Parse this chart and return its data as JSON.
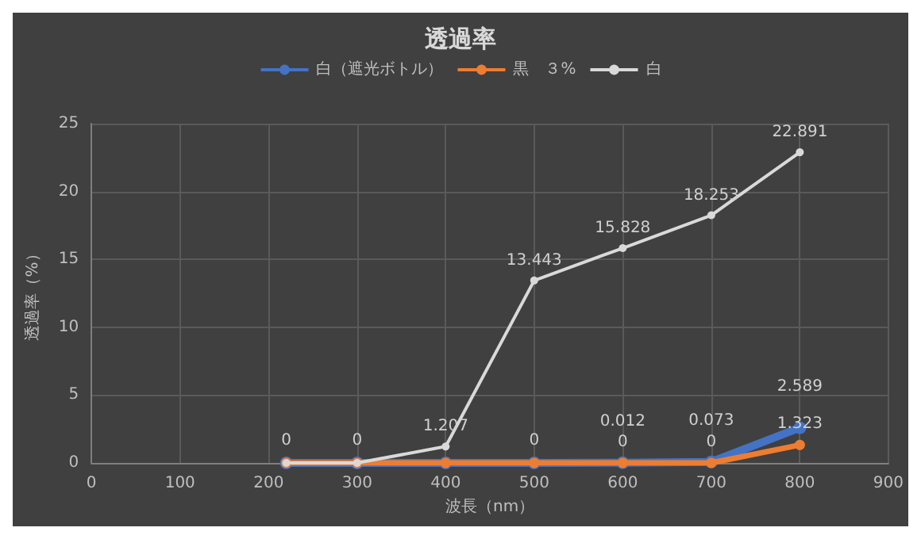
{
  "chart_data": {
    "type": "line",
    "title": "透過率",
    "xlabel": "波長（nm）",
    "ylabel": "透過率（%）",
    "x": [
      220,
      300,
      400,
      500,
      600,
      700,
      800
    ],
    "series": [
      {
        "name": "白（遮光ボトル）",
        "color": "#4472c4",
        "values": [
          0,
          0,
          0,
          0,
          0.012,
          0.073,
          2.589
        ],
        "value_labels": [
          "0",
          "0",
          null,
          "0",
          "0.012",
          "0.073",
          "2.589"
        ]
      },
      {
        "name": "黒　３%",
        "color": "#ed7d31",
        "values": [
          0,
          0,
          0,
          0,
          0,
          0,
          1.323
        ],
        "value_labels": [
          null,
          null,
          null,
          null,
          "0",
          "0",
          "1.323"
        ]
      },
      {
        "name": "白",
        "color": "#d9d9d9",
        "values": [
          0,
          0,
          1.207,
          13.443,
          15.828,
          18.253,
          22.891
        ],
        "value_labels": [
          null,
          null,
          "1.207",
          "13.443",
          "15.828",
          "18.253",
          "22.891"
        ]
      }
    ],
    "xlim": [
      0,
      900
    ],
    "xticks": [
      0,
      100,
      200,
      300,
      400,
      500,
      600,
      700,
      800,
      900
    ],
    "ylim": [
      0,
      25
    ],
    "yticks": [
      0,
      5,
      10,
      15,
      20,
      25
    ],
    "grid": true,
    "legend": "top",
    "marker": "circle",
    "line_style": "solid"
  }
}
